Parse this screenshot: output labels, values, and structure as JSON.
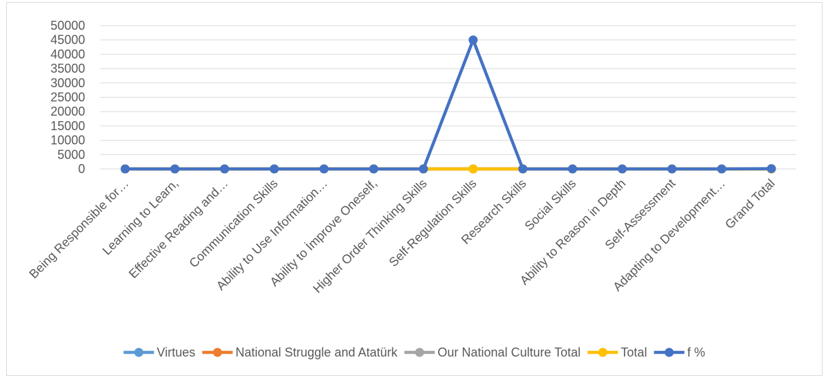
{
  "chart_data": {
    "type": "line",
    "categories": [
      "Being Responsible for…",
      "Learning to Learn,",
      "Effective Reading and…",
      "Communication Skills",
      "Ability to Use Information…",
      "Ability to İmprove Oneself,",
      "Higher Order Thinking Skills",
      "Self-Regulation Skills",
      "Research Skills",
      "Social Skills",
      "Ability to Reason in Depth",
      "Self-Assessment",
      "Adapting to Development…",
      "Grand Total"
    ],
    "series": [
      {
        "name": "Virtues",
        "color": "#5b9bd5",
        "values": [
          0,
          0,
          0,
          0,
          0,
          0,
          0,
          0,
          0,
          0,
          0,
          0,
          0,
          0
        ]
      },
      {
        "name": "National Struggle and Atatürk",
        "color": "#ed7d31",
        "values": [
          0,
          0,
          0,
          0,
          0,
          0,
          0,
          0,
          0,
          0,
          0,
          0,
          0,
          0
        ]
      },
      {
        "name": "Our National Culture Total",
        "color": "#a5a5a5",
        "values": [
          0,
          0,
          0,
          0,
          0,
          0,
          0,
          0,
          0,
          0,
          0,
          0,
          0,
          0
        ]
      },
      {
        "name": "Total",
        "color": "#ffc000",
        "values": [
          0,
          0,
          0,
          0,
          0,
          0,
          0,
          0,
          0,
          0,
          0,
          0,
          0,
          0
        ]
      },
      {
        "name": "f %",
        "color": "#4472c4",
        "values": [
          0,
          0,
          0,
          0,
          0,
          0,
          0,
          45000,
          0,
          0,
          0,
          0,
          0,
          100
        ]
      }
    ],
    "ylim": [
      0,
      50000
    ],
    "yticks": [
      "0",
      "5000",
      "10000",
      "15000",
      "20000",
      "25000",
      "30000",
      "35000",
      "40000",
      "45000",
      "50000"
    ],
    "grid": true,
    "legend": "bottom"
  }
}
